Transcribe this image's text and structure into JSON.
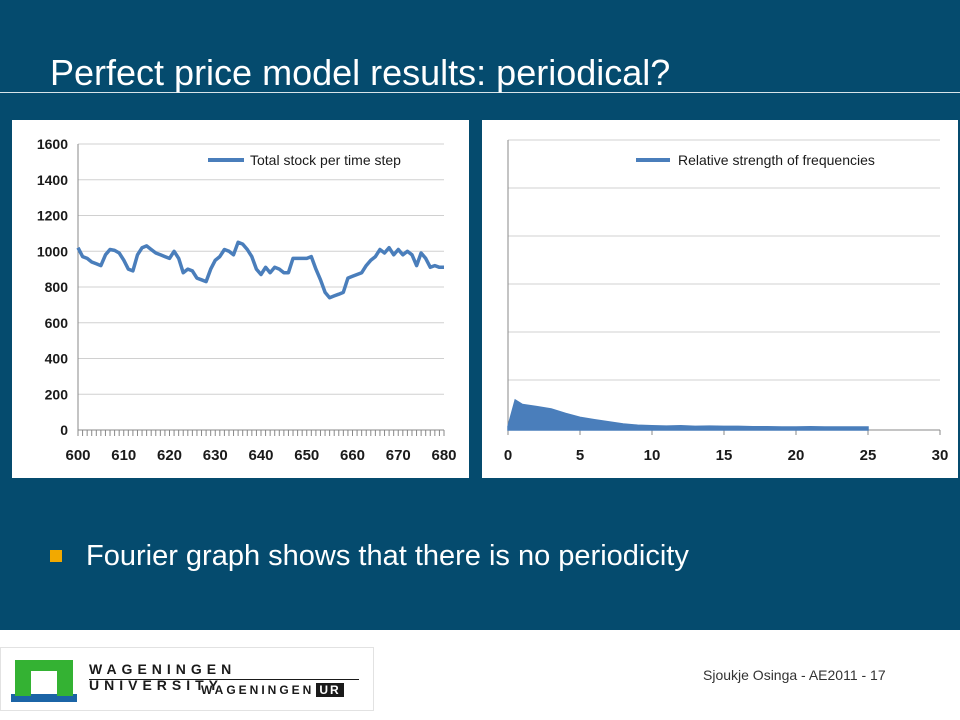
{
  "slide": {
    "title": "Perfect price model results: periodical?",
    "bullet": "Fourier graph shows that there is no periodicity",
    "footer": "Sjoukje Osinga - AE2011 - 17",
    "logo": {
      "line1": "WAGENINGEN UNIVERSITY",
      "line2": "WAGENINGEN",
      "line2_badge": "UR"
    },
    "colors": {
      "background": "#054b6e",
      "series": "#4a7ebb",
      "bullet": "#f2a900",
      "logo_green": "#34b233"
    }
  },
  "chart_data": [
    {
      "type": "line",
      "legend": "Total stock per time step",
      "legend_position": "top-right",
      "xticks": [
        "600",
        "610",
        "620",
        "630",
        "640",
        "650",
        "660",
        "670",
        "680"
      ],
      "yticks": [
        "0",
        "200",
        "400",
        "600",
        "800",
        "1000",
        "1200",
        "1400",
        "1600"
      ],
      "xlim": [
        600,
        680
      ],
      "ylim": [
        0,
        1600
      ],
      "grid": true,
      "x": [
        600,
        601,
        602,
        603,
        604,
        605,
        606,
        607,
        608,
        609,
        610,
        611,
        612,
        613,
        614,
        615,
        616,
        617,
        618,
        619,
        620,
        621,
        622,
        623,
        624,
        625,
        626,
        627,
        628,
        629,
        630,
        631,
        632,
        633,
        634,
        635,
        636,
        637,
        638,
        639,
        640,
        641,
        642,
        643,
        644,
        645,
        646,
        647,
        648,
        649,
        650,
        651,
        652,
        653,
        654,
        655,
        656,
        657,
        658,
        659,
        660,
        661,
        662,
        663,
        664,
        665,
        666,
        667,
        668,
        669,
        670,
        671,
        672,
        673,
        674,
        675,
        676,
        677,
        678,
        679,
        680
      ],
      "y": [
        1020,
        970,
        960,
        940,
        930,
        920,
        980,
        1010,
        1005,
        990,
        950,
        900,
        890,
        980,
        1020,
        1030,
        1010,
        990,
        980,
        970,
        960,
        1000,
        960,
        880,
        900,
        890,
        850,
        840,
        830,
        900,
        950,
        970,
        1010,
        1000,
        980,
        1050,
        1040,
        1010,
        970,
        900,
        870,
        910,
        880,
        910,
        900,
        880,
        880,
        960,
        960,
        960,
        960,
        970,
        900,
        840,
        770,
        740,
        750,
        760,
        770,
        850,
        860,
        870,
        880,
        920,
        950,
        970,
        1010,
        990,
        1020,
        980,
        1010,
        980,
        1000,
        980,
        920,
        990,
        960,
        910,
        920,
        910,
        910
      ],
      "series": [
        {
          "name": "Total stock per time step",
          "color": "#4a7ebb"
        }
      ]
    },
    {
      "type": "area",
      "legend": "Relative strength of frequencies",
      "legend_position": "top-right",
      "xticks": [
        "0",
        "5",
        "10",
        "15",
        "20",
        "25",
        "30"
      ],
      "xlim": [
        0,
        30
      ],
      "grid": true,
      "y_tick_labels_shown": false,
      "x": [
        0,
        0.5,
        1,
        2,
        3,
        4,
        5,
        6,
        7,
        8,
        9,
        10,
        11,
        12,
        13,
        14,
        15,
        16,
        17,
        18,
        19,
        20,
        21,
        22,
        23,
        24,
        25
      ],
      "y": [
        0.12,
        1,
        0.85,
        0.78,
        0.7,
        0.55,
        0.42,
        0.34,
        0.27,
        0.2,
        0.16,
        0.14,
        0.13,
        0.14,
        0.12,
        0.13,
        0.12,
        0.12,
        0.11,
        0.11,
        0.1,
        0.1,
        0.11,
        0.1,
        0.1,
        0.1,
        0.1
      ],
      "series": [
        {
          "name": "Relative strength of frequencies",
          "color": "#4a7ebb"
        }
      ]
    }
  ]
}
